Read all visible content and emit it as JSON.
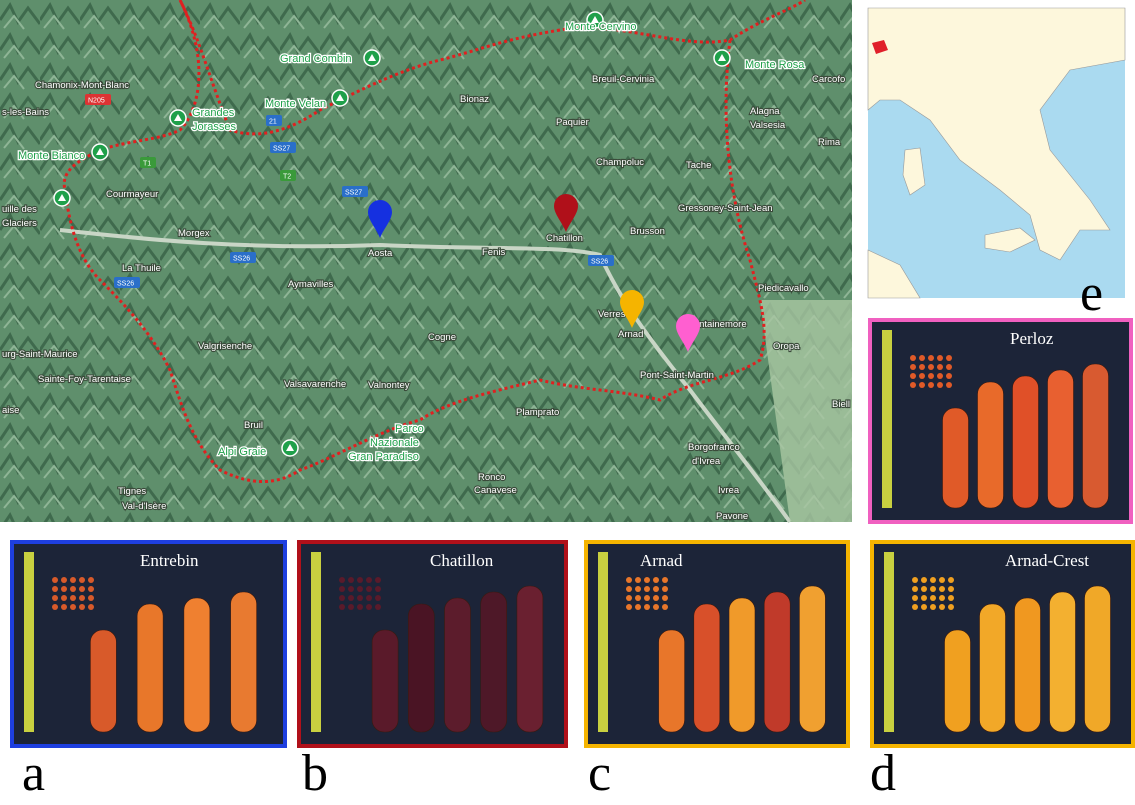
{
  "map": {
    "labels": [
      "Chamonix-Mont-Blanc",
      "s-les-Bains",
      "Bionaz",
      "Paquier",
      "Breuil-Cervinia",
      "Carcofo",
      "Champoluc",
      "Tache",
      "Alagna",
      "Valsesia",
      "Rima",
      "Courmayeur",
      "Morgex",
      "Aosta",
      "Fenis",
      "Chatillon",
      "Brusson",
      "Gressoney-Saint-Jean",
      "La Thuile",
      "Aymavilles",
      "Verres",
      "Arnad",
      "Fontainemore",
      "Piedicavallo",
      "Oropa",
      "Valgrisenche",
      "Cogne",
      "Valsavarenche",
      "Valnontey",
      "Pont-Saint-Martin",
      "Biell",
      "Bruil",
      "Plamprato",
      "Ronco",
      "Canavese",
      "Borgofranco",
      "d'Ivrea",
      "Ivrea",
      "Pavone",
      "Tignes",
      "Val-d'Isère",
      "Sainte-Foy-Tarentaise",
      "urg-Saint-Maurice",
      "aise",
      "uille des",
      "Glaciers"
    ],
    "peaks": [
      "Monte Cervino",
      "Grand Combin",
      "Monte Rosa",
      "Monte Velan",
      "Grandes",
      "Jorasses",
      "Monte Bianco",
      "Parco",
      "Nazionale",
      "Gran Paradiso",
      "Alpi Graie"
    ],
    "roads": [
      "N205",
      "21",
      "SS27",
      "T1",
      "T2",
      "SS27",
      "SS26",
      "SS26",
      "SS26"
    ]
  },
  "panels": [
    "Entrebin",
    "Chatillon",
    "Arnad",
    "Arnad-Crest",
    "Perloz"
  ],
  "letters": [
    "a",
    "b",
    "c",
    "d",
    "e"
  ]
}
